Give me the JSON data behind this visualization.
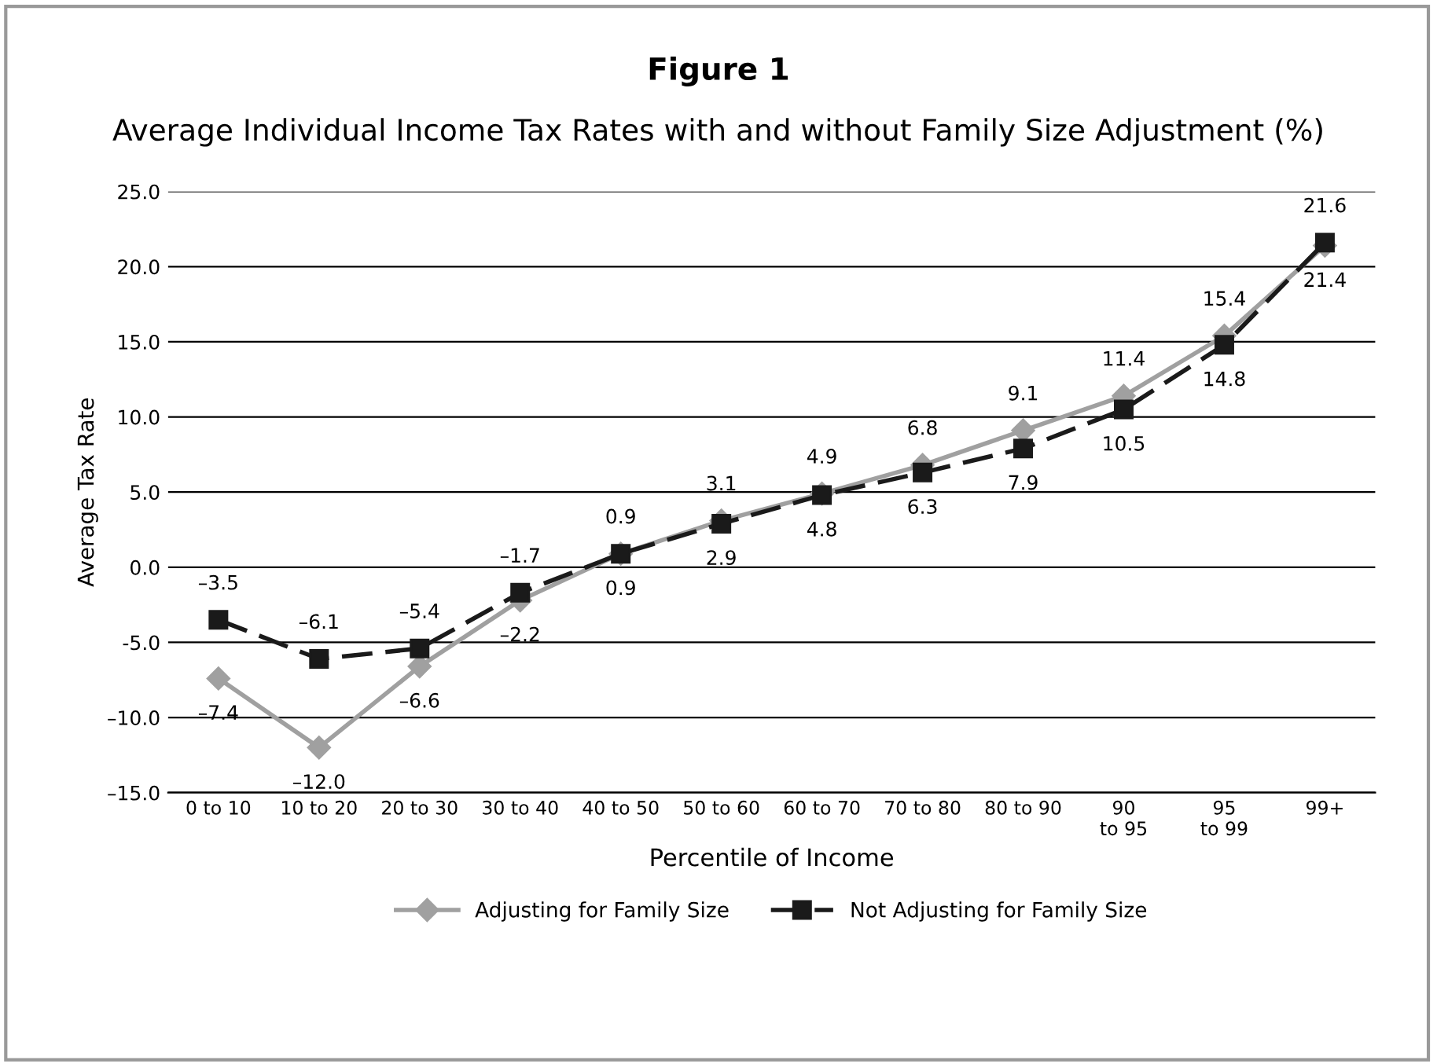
{
  "chart_data": {
    "type": "line",
    "title": "Figure 1",
    "subtitle": "Average Individual Income Tax Rates with and without Family Size Adjustment (%)",
    "xlabel": "Percentile of Income",
    "ylabel": "Average Tax Rate",
    "categories": [
      "0 to 10",
      "10 to 20",
      "20 to 30",
      "30 to 40",
      "40 to 50",
      "50 to 60",
      "60 to 70",
      "70 to 80",
      "80 to 90",
      "90\nto 95",
      "95\nto 99",
      "99+"
    ],
    "series": [
      {
        "name": "Adjusting for Family Size",
        "color": "#a0a0a0",
        "marker": "diamond",
        "line_style": "solid",
        "values": [
          -7.4,
          -12.0,
          -6.6,
          -2.2,
          0.9,
          3.1,
          4.9,
          6.8,
          9.1,
          11.4,
          15.4,
          21.4
        ],
        "value_labels": [
          "–7.4",
          "–12.0",
          "–6.6",
          "–2.2",
          "0.9",
          "3.1",
          "4.9",
          "6.8",
          "9.1",
          "11.4",
          "15.4",
          "21.4"
        ]
      },
      {
        "name": "Not Adjusting for Family Size",
        "color": "#1a1a1a",
        "marker": "square",
        "line_style": "dashed",
        "values": [
          -3.5,
          -6.1,
          -5.4,
          -1.7,
          0.9,
          2.9,
          4.8,
          6.3,
          7.9,
          10.5,
          14.8,
          21.6
        ],
        "value_labels": [
          "–3.5",
          "–6.1",
          "–5.4",
          "–1.7",
          "0.9",
          "2.9",
          "4.8",
          "6.3",
          "7.9",
          "10.5",
          "14.8",
          "21.6"
        ]
      }
    ],
    "ylim": [
      -15,
      25
    ],
    "yticks": [
      {
        "value": -15,
        "label": "–15.0"
      },
      {
        "value": -10,
        "label": "–10.0"
      },
      {
        "value": -5,
        "label": "-5.0"
      },
      {
        "value": 0,
        "label": "0.0"
      },
      {
        "value": 5,
        "label": "5.0"
      },
      {
        "value": 10,
        "label": "10.0"
      },
      {
        "value": 15,
        "label": "15.0"
      },
      {
        "value": 20,
        "label": "20.0"
      },
      {
        "value": 25,
        "label": "25.0"
      }
    ],
    "grid": "y",
    "legend": "bottom"
  }
}
